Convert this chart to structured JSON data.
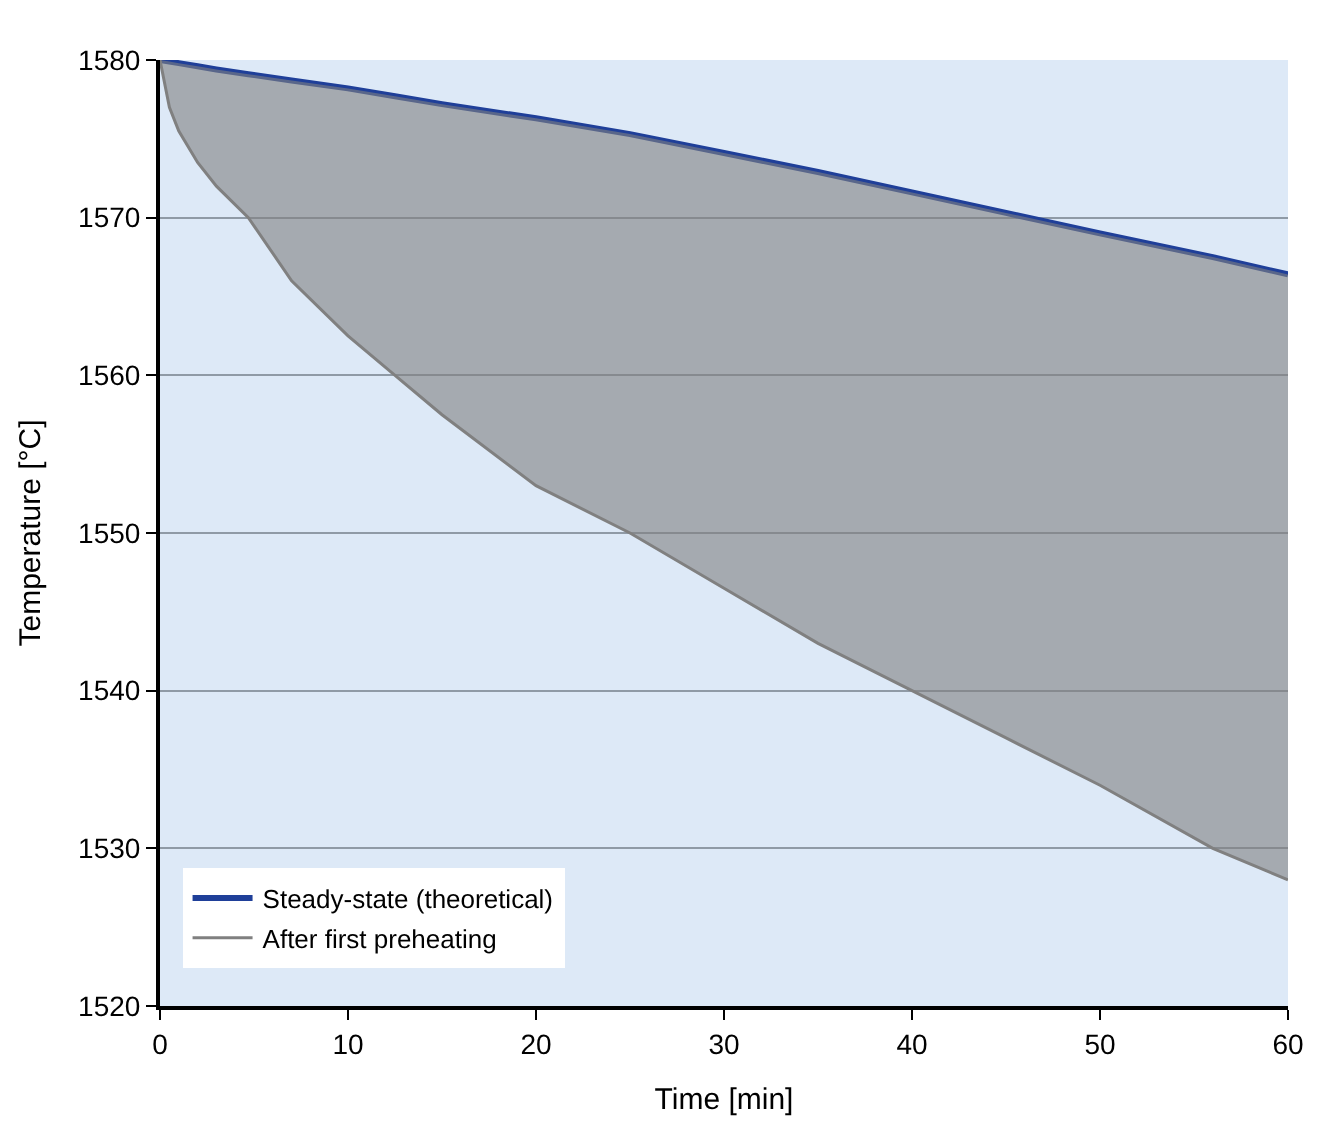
{
  "chart_data": {
    "type": "line",
    "xlabel": "Time [min]",
    "ylabel": "Temperature [°C]",
    "x": [
      0,
      0.5,
      1,
      2,
      3,
      4.7,
      7,
      10,
      12.5,
      15,
      20,
      25,
      30,
      35,
      40,
      45,
      50,
      56,
      60
    ],
    "series": [
      {
        "name": "Steady-state (theoretical)",
        "color": "#1f3f99",
        "values": [
          1580,
          1579.9,
          1579.8,
          1579.6,
          1579.4,
          1579.1,
          1578.7,
          1578.2,
          1577.7,
          1577.2,
          1576.3,
          1575.3,
          1574.1,
          1572.9,
          1571.6,
          1570.3,
          1569,
          1567.5,
          1566.4
        ]
      },
      {
        "name": "After first preheating",
        "color": "#808080",
        "values": [
          1580,
          1577,
          1575.5,
          1573.5,
          1572,
          1570,
          1566,
          1562.5,
          1560,
          1557.5,
          1553,
          1550,
          1546.5,
          1543,
          1540,
          1537,
          1534,
          1530,
          1528
        ],
        "lower": [
          1580,
          1577,
          1575.5,
          1573.5,
          1572,
          1570,
          1566,
          1562.5,
          1560,
          1557.5,
          1553,
          1550,
          1546.5,
          1543,
          1540,
          1537,
          1534,
          1530,
          1528
        ],
        "upper": [
          1580,
          1579.9,
          1579.8,
          1579.6,
          1579.4,
          1579.1,
          1578.7,
          1578.2,
          1577.7,
          1577.2,
          1576.3,
          1575.3,
          1574.1,
          1572.9,
          1571.6,
          1570.3,
          1569,
          1567.5,
          1566.4
        ]
      }
    ],
    "xlim": [
      0,
      60
    ],
    "xticks": [
      0,
      10,
      20,
      30,
      40,
      50,
      60
    ],
    "ylim": [
      1520,
      1580
    ],
    "yticks": [
      1520,
      1530,
      1540,
      1550,
      1560,
      1570,
      1580
    ],
    "grid": "y",
    "legend": "bottom left",
    "marker": "none",
    "line_style": "solid"
  }
}
